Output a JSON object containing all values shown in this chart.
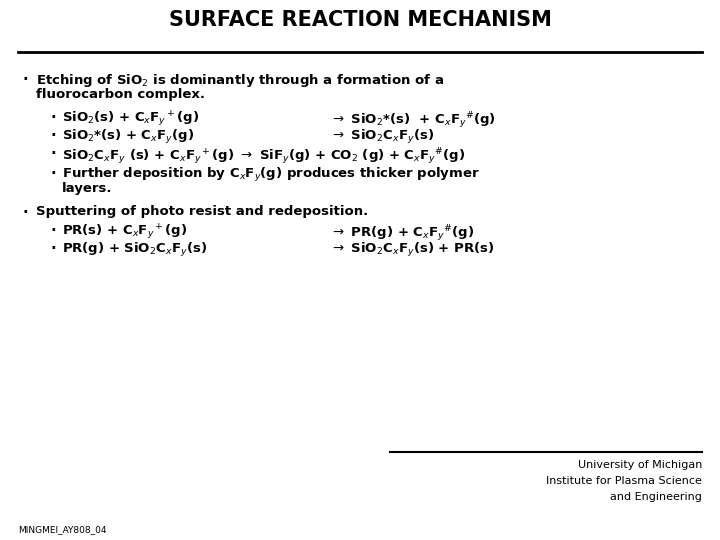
{
  "title": "SURFACE REACTION MECHANISM",
  "bg_color": "#ffffff",
  "text_color": "#000000",
  "title_fontsize": 15,
  "fs": 9.5,
  "fsb": 9.5,
  "footer_label": "MINGMEI_AY808_04",
  "university_lines": [
    "University of Michigan",
    "Institute for Plasma Science",
    "and Engineering"
  ],
  "bullet_main": "·",
  "bullet_sub": "·"
}
